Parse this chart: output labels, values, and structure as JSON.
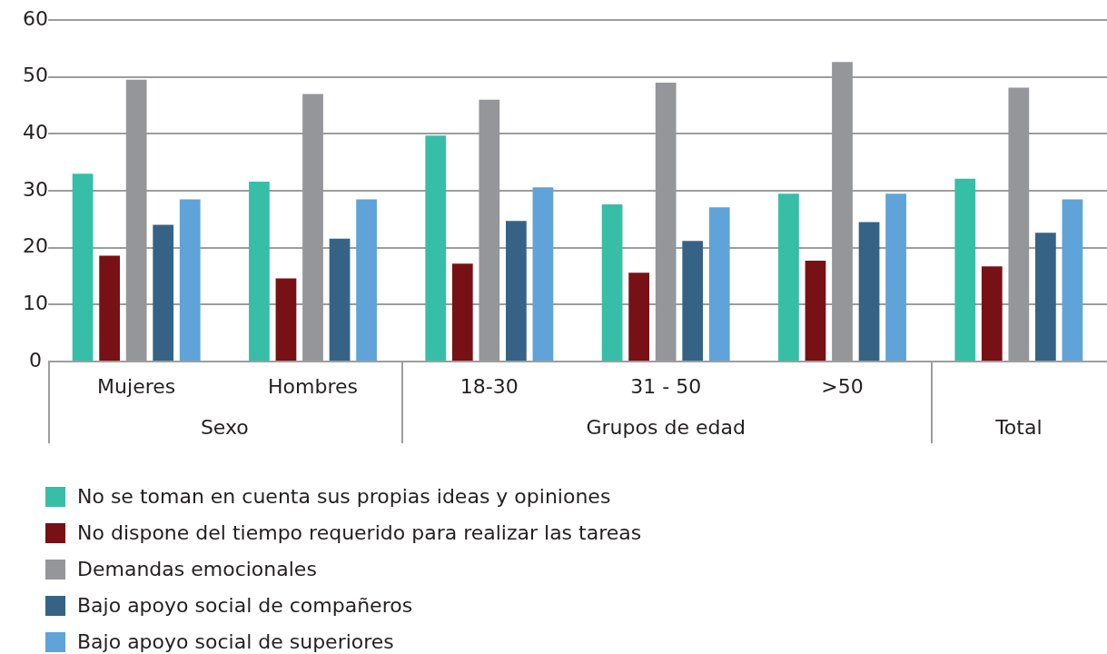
{
  "chart_data": {
    "type": "bar",
    "categories": [
      "Mujeres",
      "Hombres",
      "18-30",
      "31 - 50",
      ">50",
      null
    ],
    "series": [
      {
        "name": "No se toman en cuenta sus propias ideas y opiniones",
        "color": "#36bea6",
        "values": [
          33.0,
          31.6,
          39.7,
          27.6,
          29.5,
          32.1
        ]
      },
      {
        "name": "No dispone del tiempo requerido para realizar las tareas",
        "color": "#771115",
        "values": [
          18.6,
          14.6,
          17.2,
          15.6,
          17.7,
          16.7
        ]
      },
      {
        "name": "Demandas emocionales",
        "color": "#95969a",
        "values": [
          49.5,
          47.0,
          46.0,
          49.0,
          52.6,
          48.1
        ]
      },
      {
        "name": "Bajo apoyo social de compañeros",
        "color": "#366385",
        "values": [
          24.0,
          21.6,
          24.7,
          21.2,
          24.5,
          22.6
        ]
      },
      {
        "name": "Bajo apoyo social de superiores",
        "color": "#5fa3d8",
        "values": [
          28.5,
          28.5,
          30.6,
          27.1,
          29.5,
          28.5
        ]
      }
    ],
    "ylim": [
      0,
      60
    ],
    "yticks": [
      0,
      10,
      20,
      30,
      40,
      50,
      60
    ],
    "grid": "y",
    "legend": "bottom",
    "annotations": [
      "Sexo",
      "Grupos de edad",
      "Total"
    ]
  }
}
